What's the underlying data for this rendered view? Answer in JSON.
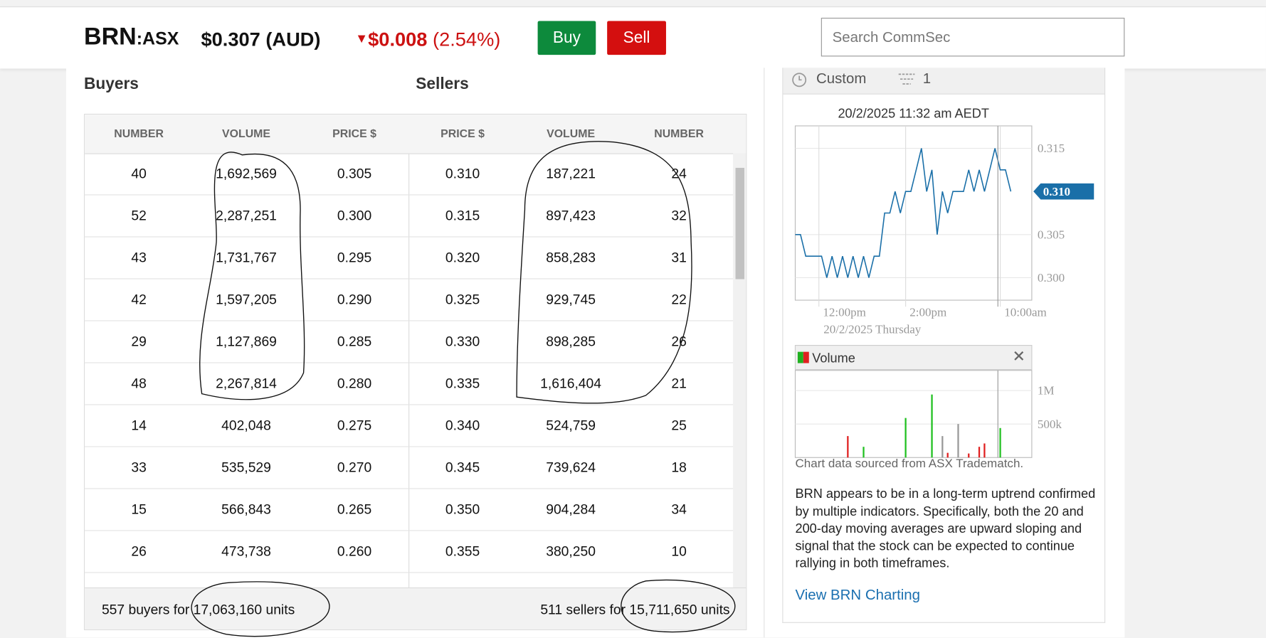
{
  "header": {
    "symbol": "BRN",
    "exchange": ":ASX",
    "price": "$0.307 (AUD)",
    "change": "$0.008",
    "change_pct": "(2.54%)",
    "buy": "Buy",
    "sell": "Sell",
    "search_placeholder": "Search CommSec"
  },
  "order_book": {
    "buyers_title": "Buyers",
    "sellers_title": "Sellers",
    "columns": [
      "NUMBER",
      "VOLUME",
      "PRICE $",
      "PRICE $",
      "VOLUME",
      "NUMBER"
    ],
    "rows": [
      [
        "40",
        "1,692,569",
        "0.305",
        "0.310",
        "187,221",
        "24"
      ],
      [
        "52",
        "2,287,251",
        "0.300",
        "0.315",
        "897,423",
        "32"
      ],
      [
        "43",
        "1,731,767",
        "0.295",
        "0.320",
        "858,283",
        "31"
      ],
      [
        "42",
        "1,597,205",
        "0.290",
        "0.325",
        "929,745",
        "22"
      ],
      [
        "29",
        "1,127,869",
        "0.285",
        "0.330",
        "898,285",
        "26"
      ],
      [
        "48",
        "2,267,814",
        "0.280",
        "0.335",
        "1,616,404",
        "21"
      ],
      [
        "14",
        "402,048",
        "0.275",
        "0.340",
        "524,759",
        "25"
      ],
      [
        "33",
        "535,529",
        "0.270",
        "0.345",
        "739,624",
        "18"
      ],
      [
        "15",
        "566,843",
        "0.265",
        "0.350",
        "904,284",
        "34"
      ],
      [
        "26",
        "473,738",
        "0.260",
        "0.355",
        "380,250",
        "10"
      ]
    ],
    "buyers_total": "557 buyers for 17,063,160 units",
    "sellers_total": "511 sellers for 15,711,650 units"
  },
  "side_panel": {
    "tab": "Custom",
    "filter_count": "1",
    "source_note": "Chart data sourced from ASX Tradematch.",
    "description": "BRN appears to be in a long-term uptrend confirmed by multiple indicators. Specifically, both the 20 and 200-day moving averages are upward sloping and signal that the stock can be expected to continue rallying in both timeframes.",
    "link": "View BRN Charting"
  },
  "chart_data": [
    {
      "type": "line",
      "title": "20/2/2025 11:32 am AEDT",
      "subtitle": "20/2/2025 Thursday",
      "color": "#1a6fa8",
      "x": [
        0,
        1,
        2,
        3,
        4,
        5,
        6,
        7,
        8,
        9,
        10,
        11,
        12,
        13,
        14,
        15,
        16,
        17,
        18,
        19,
        20,
        21,
        22,
        23,
        24,
        25,
        26,
        27,
        28,
        29,
        30,
        31,
        32,
        33,
        34,
        35,
        36,
        37,
        38,
        39,
        40,
        41
      ],
      "values": [
        0.305,
        0.305,
        0.3025,
        0.3025,
        0.3025,
        0.3025,
        0.3,
        0.3025,
        0.3,
        0.3025,
        0.3,
        0.3025,
        0.3,
        0.3025,
        0.3,
        0.3025,
        0.3025,
        0.3075,
        0.3075,
        0.31,
        0.3075,
        0.31,
        0.31,
        0.3125,
        0.315,
        0.31,
        0.3125,
        0.305,
        0.31,
        0.3075,
        0.31,
        0.31,
        0.31,
        0.3125,
        0.31,
        0.3125,
        0.31,
        0.3125,
        0.315,
        0.3125,
        0.3125,
        0.31
      ],
      "xlim": [
        0,
        45
      ],
      "ylim": [
        0.2974,
        0.3176
      ],
      "xticks": [
        {
          "value": 4.5,
          "label": "12:00pm"
        },
        {
          "value": 21,
          "label": "2:00pm"
        },
        {
          "value": 39,
          "label": "10:00am"
        }
      ],
      "yticks": [
        {
          "value": 0.3,
          "label": "0.300"
        },
        0.305,
        0.315
      ],
      "last": {
        "value": 0.31,
        "label": "0.310"
      },
      "grid": true
    },
    {
      "type": "bar",
      "title": "Volume",
      "x": [
        10,
        13,
        21,
        26,
        28,
        29,
        31,
        33,
        35,
        36,
        39
      ],
      "values": [
        320000,
        160000,
        590000,
        940000,
        320000,
        70000,
        500000,
        60000,
        160000,
        210000,
        440000
      ],
      "colors": [
        "#e02020",
        "#20c020",
        "#20c020",
        "#20c020",
        "#999999",
        "#e02020",
        "#999999",
        "#e02020",
        "#e02020",
        "#e02020",
        "#20c020"
      ],
      "xlim": [
        0,
        45
      ],
      "ylim": [
        0,
        1300000
      ],
      "yticks": [
        {
          "value": 500000,
          "label": "500k"
        },
        {
          "value": 1000000,
          "label": "1M"
        }
      ],
      "grid": true
    }
  ]
}
